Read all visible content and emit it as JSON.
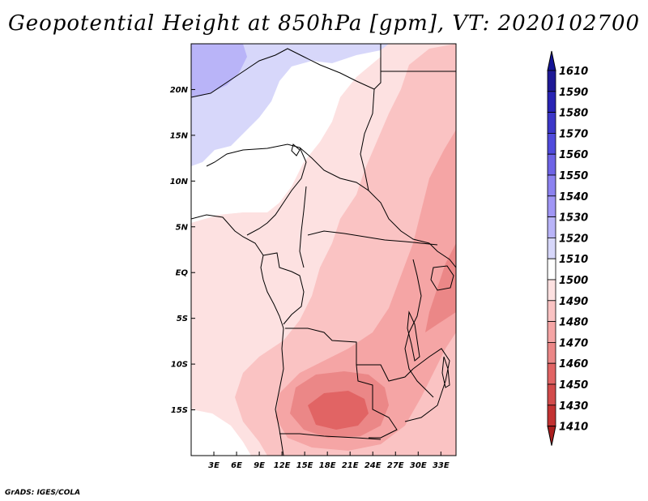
{
  "title": "Geopotential Height at 850hPa [gpm], VT: 2020102700",
  "credit": "GrADS: IGES/COLA",
  "map": {
    "lon_range": [
      0,
      35
    ],
    "lat_range": [
      -20,
      25
    ],
    "lat_ticks": [
      {
        "lat": 20,
        "label": "20N"
      },
      {
        "lat": 15,
        "label": "15N"
      },
      {
        "lat": 10,
        "label": "10N"
      },
      {
        "lat": 5,
        "label": "5N"
      },
      {
        "lat": 0,
        "label": "EQ"
      },
      {
        "lat": -5,
        "label": "5S"
      },
      {
        "lat": -10,
        "label": "10S"
      },
      {
        "lat": -15,
        "label": "15S"
      }
    ],
    "lon_ticks": [
      {
        "lon": 3,
        "label": "3E"
      },
      {
        "lon": 6,
        "label": "6E"
      },
      {
        "lon": 9,
        "label": "9E"
      },
      {
        "lon": 12,
        "label": "12E"
      },
      {
        "lon": 15,
        "label": "15E"
      },
      {
        "lon": 18,
        "label": "18E"
      },
      {
        "lon": 21,
        "label": "21E"
      },
      {
        "lon": 24,
        "label": "24E"
      },
      {
        "lon": 27,
        "label": "27E"
      },
      {
        "lon": 30,
        "label": "30E"
      },
      {
        "lon": 33,
        "label": "33E"
      }
    ]
  },
  "colorbar": {
    "levels": [
      {
        "label": "1610",
        "color": "#1e1996"
      },
      {
        "label": "1590",
        "color": "#2823b4"
      },
      {
        "label": "1580",
        "color": "#3c37c8"
      },
      {
        "label": "1570",
        "color": "#504bdc"
      },
      {
        "label": "1560",
        "color": "#6e64e6"
      },
      {
        "label": "1550",
        "color": "#8c82f0"
      },
      {
        "label": "1540",
        "color": "#a096f5"
      },
      {
        "label": "1530",
        "color": "#b9b4f8"
      },
      {
        "label": "1520",
        "color": "#d7d7fa"
      },
      {
        "label": "1510",
        "color": "#ffffff"
      },
      {
        "label": "1500",
        "color": "#fde1e1"
      },
      {
        "label": "1490",
        "color": "#fac3c3"
      },
      {
        "label": "1480",
        "color": "#f5a5a5"
      },
      {
        "label": "1470",
        "color": "#eb8787"
      },
      {
        "label": "1460",
        "color": "#e16464"
      },
      {
        "label": "1450",
        "color": "#d24b4b"
      },
      {
        "label": "1430",
        "color": "#c33232"
      },
      {
        "label": "1410",
        "color": "#aa1e1e"
      }
    ],
    "top_color": "#141496",
    "bottom_color": "#aa1e1e"
  }
}
